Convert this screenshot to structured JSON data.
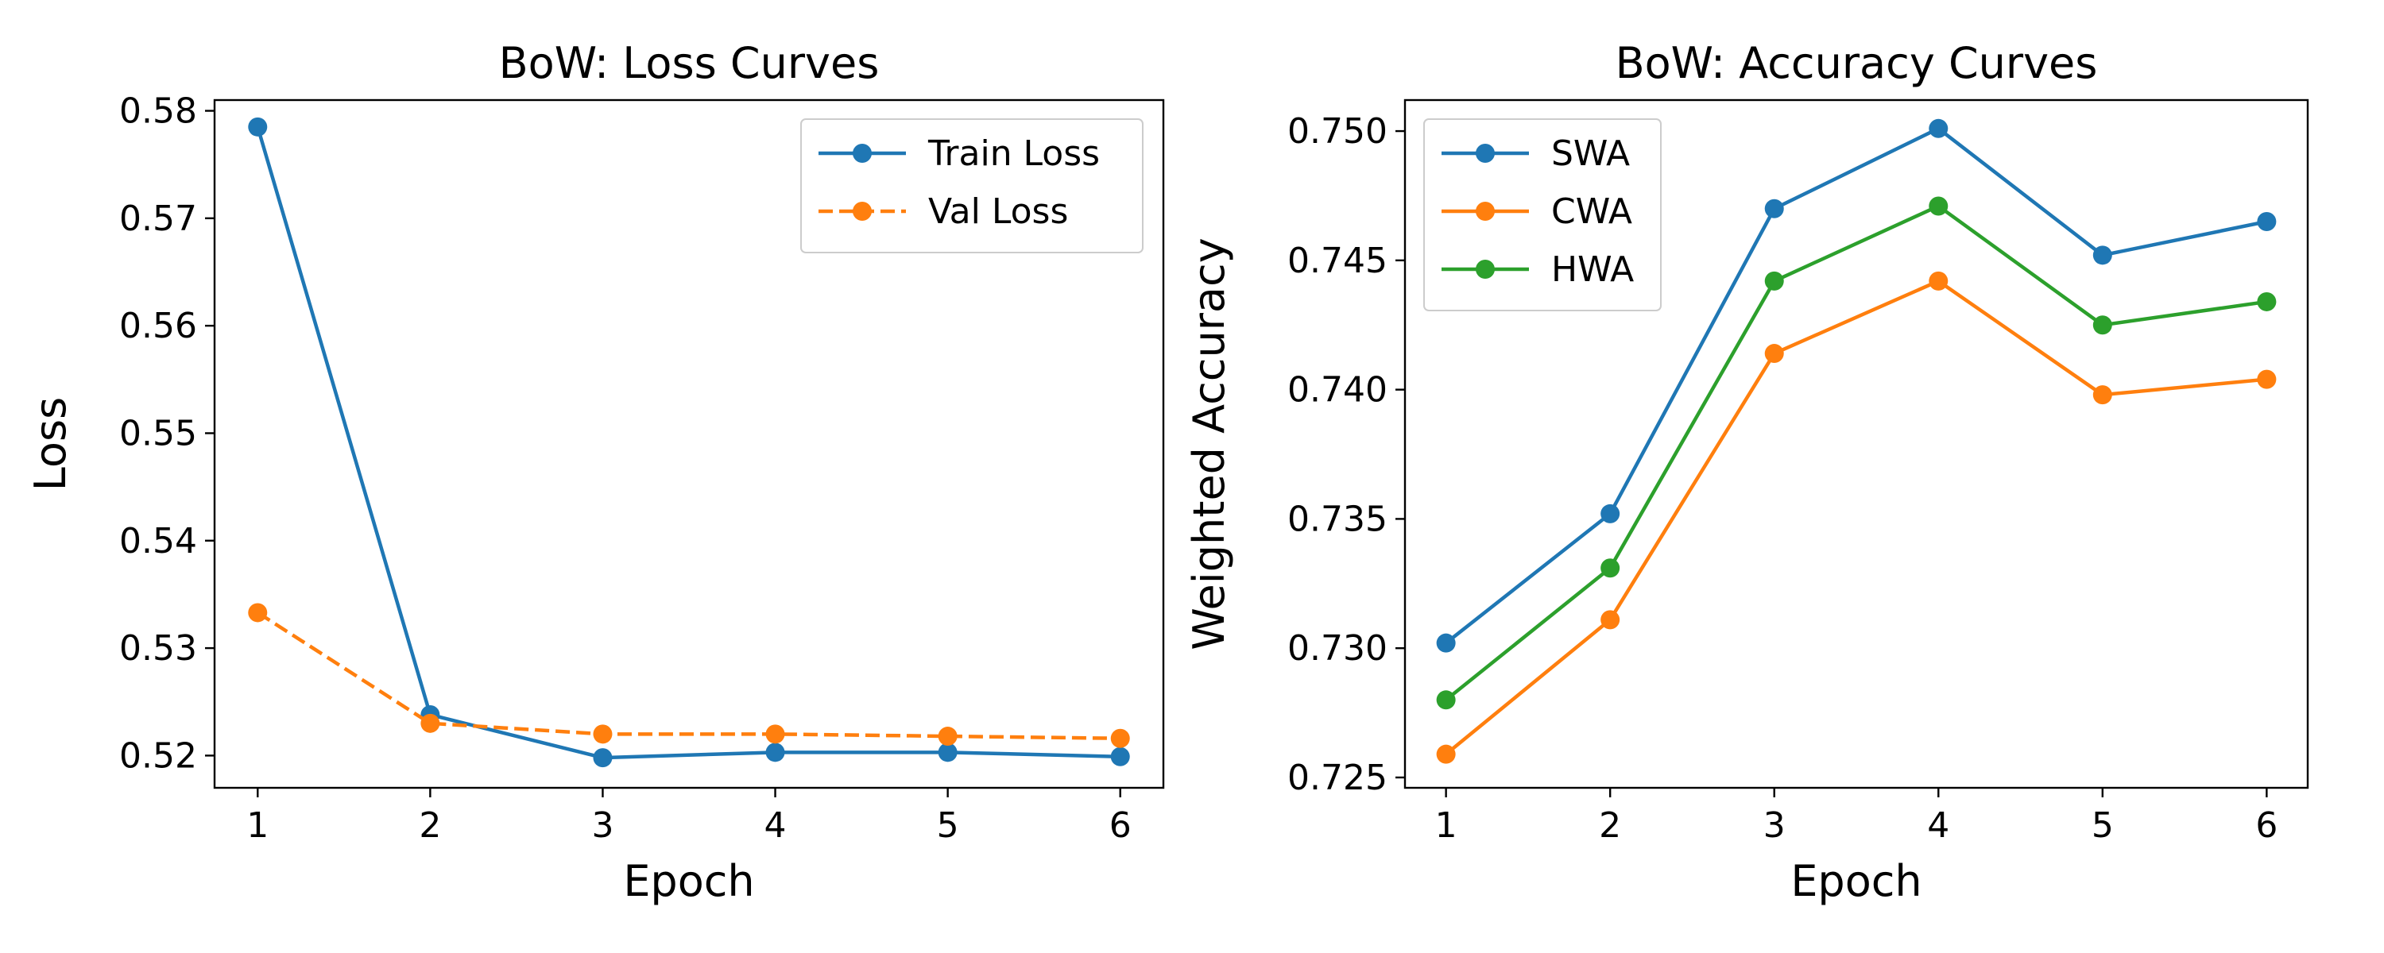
{
  "chart_data": [
    {
      "type": "line",
      "title": "BoW: Loss Curves",
      "xlabel": "Epoch",
      "ylabel": "Loss",
      "x": [
        1,
        2,
        3,
        4,
        5,
        6
      ],
      "xticks": [
        "1",
        "2",
        "3",
        "4",
        "5",
        "6"
      ],
      "yticks": [
        "0.52",
        "0.53",
        "0.54",
        "0.55",
        "0.56",
        "0.57",
        "0.58"
      ],
      "xlim": [
        0.75,
        6.25
      ],
      "ylim": [
        0.517,
        0.581
      ],
      "grid": false,
      "legend_position": "top-right",
      "series": [
        {
          "name": "Train Loss",
          "color": "#1f77b4",
          "linestyle": "solid",
          "marker": "circle",
          "values": [
            0.5785,
            0.5238,
            0.5198,
            0.5203,
            0.5203,
            0.5199
          ]
        },
        {
          "name": "Val Loss",
          "color": "#ff7f0e",
          "linestyle": "dashed",
          "marker": "circle",
          "values": [
            0.5333,
            0.523,
            0.522,
            0.522,
            0.5218,
            0.5216
          ]
        }
      ]
    },
    {
      "type": "line",
      "title": "BoW: Accuracy Curves",
      "xlabel": "Epoch",
      "ylabel": "Weighted Accuracy",
      "x": [
        1,
        2,
        3,
        4,
        5,
        6
      ],
      "xticks": [
        "1",
        "2",
        "3",
        "4",
        "5",
        "6"
      ],
      "yticks": [
        "0.725",
        "0.730",
        "0.735",
        "0.740",
        "0.745",
        "0.750"
      ],
      "xlim": [
        0.75,
        6.25
      ],
      "ylim": [
        0.7246,
        0.7512
      ],
      "grid": false,
      "legend_position": "top-left",
      "series": [
        {
          "name": "SWA",
          "color": "#1f77b4",
          "linestyle": "solid",
          "marker": "circle",
          "values": [
            0.7302,
            0.7352,
            0.747,
            0.7501,
            0.7452,
            0.7465
          ]
        },
        {
          "name": "CWA",
          "color": "#ff7f0e",
          "linestyle": "solid",
          "marker": "circle",
          "values": [
            0.7259,
            0.7311,
            0.7414,
            0.7442,
            0.7398,
            0.7404
          ]
        },
        {
          "name": "HWA",
          "color": "#2ca02c",
          "linestyle": "solid",
          "marker": "circle",
          "values": [
            0.728,
            0.7331,
            0.7442,
            0.7471,
            0.7425,
            0.7434
          ]
        }
      ]
    }
  ]
}
